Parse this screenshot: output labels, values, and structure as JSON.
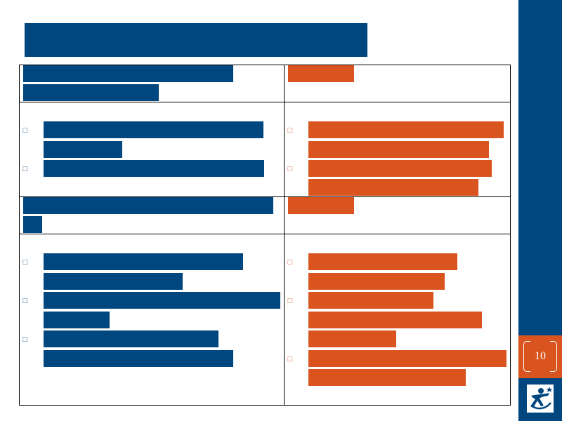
{
  "slide": {
    "page_number": "10",
    "bullet_glyph": "□",
    "colors": {
      "primary": "#00467f",
      "accent": "#d9541e"
    }
  },
  "sidebar": {
    "logo_icon": "figure-star-logo-icon"
  }
}
